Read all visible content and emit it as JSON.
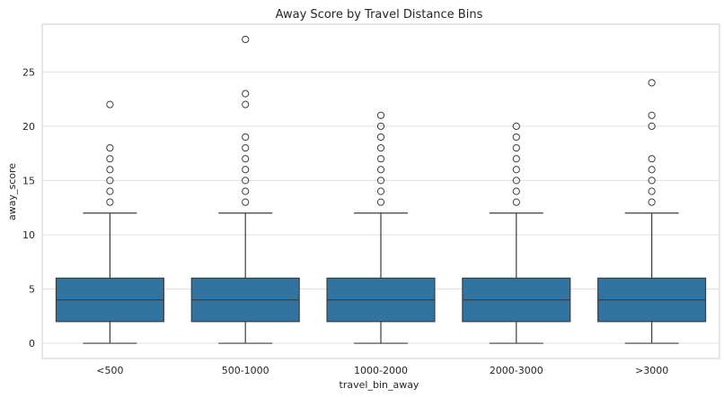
{
  "chart_data": {
    "type": "box",
    "title": "Away Score by Travel Distance Bins",
    "xlabel": "travel_bin_away",
    "ylabel": "away_score",
    "categories": [
      "<500",
      "500-1000",
      "1000-2000",
      "2000-3000",
      ">3000"
    ],
    "ylim": [
      -1.4,
      29.4
    ],
    "yticks": [
      0,
      5,
      10,
      15,
      20,
      25
    ],
    "grid": true,
    "box_color": "#3274a1",
    "boxes": [
      {
        "category": "<500",
        "min": 0,
        "q1": 2,
        "median": 4,
        "q3": 6,
        "max": 12,
        "outliers": [
          13,
          14,
          15,
          16,
          17,
          18,
          22
        ]
      },
      {
        "category": "500-1000",
        "min": 0,
        "q1": 2,
        "median": 4,
        "q3": 6,
        "max": 12,
        "outliers": [
          13,
          14,
          15,
          16,
          17,
          18,
          19,
          22,
          23,
          28
        ]
      },
      {
        "category": "1000-2000",
        "min": 0,
        "q1": 2,
        "median": 4,
        "q3": 6,
        "max": 12,
        "outliers": [
          13,
          14,
          15,
          16,
          17,
          18,
          19,
          20,
          21
        ]
      },
      {
        "category": "2000-3000",
        "min": 0,
        "q1": 2,
        "median": 4,
        "q3": 6,
        "max": 12,
        "outliers": [
          13,
          14,
          15,
          16,
          17,
          18,
          19,
          20
        ]
      },
      {
        "category": ">3000",
        "min": 0,
        "q1": 2,
        "median": 4,
        "q3": 6,
        "max": 12,
        "outliers": [
          13,
          14,
          15,
          16,
          17,
          20,
          21,
          24
        ]
      }
    ]
  }
}
